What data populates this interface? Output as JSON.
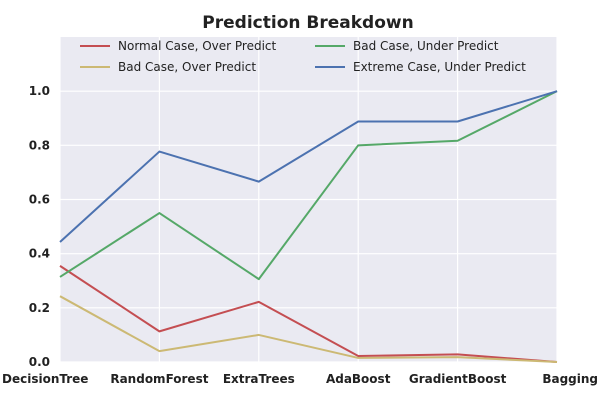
{
  "chart_data": {
    "type": "line",
    "title": "Prediction Breakdown",
    "xlabel": "",
    "ylabel": "",
    "categories": [
      "DecisionTree",
      "RandomForest",
      "ExtraTrees",
      "AdaBoost",
      "GradientBoost",
      "Bagging"
    ],
    "ylim": [
      0,
      1.2
    ],
    "yticks": [
      0.0,
      0.2,
      0.4,
      0.6,
      0.8,
      1.0
    ],
    "ytick_labels": [
      "0.0",
      "0.2",
      "0.4",
      "0.6",
      "0.8",
      "1.0"
    ],
    "grid": true,
    "legend_position": "top",
    "series": [
      {
        "name": "Normal Case, Over Predict",
        "color": "#c44e52",
        "values": [
          0.355,
          0.113,
          0.222,
          0.022,
          0.028,
          0.0
        ]
      },
      {
        "name": "Bad Case, Over Predict",
        "color": "#ccb974",
        "values": [
          0.243,
          0.04,
          0.1,
          0.015,
          0.018,
          0.0
        ]
      },
      {
        "name": "Bad Case, Under Predict",
        "color": "#55a868",
        "values": [
          0.314,
          0.55,
          0.306,
          0.8,
          0.817,
          1.0
        ]
      },
      {
        "name": "Extreme Case, Under Predict",
        "color": "#4c72b0",
        "values": [
          0.443,
          0.777,
          0.666,
          0.888,
          0.888,
          1.0
        ]
      }
    ],
    "background_color": "#eaeaf2"
  }
}
